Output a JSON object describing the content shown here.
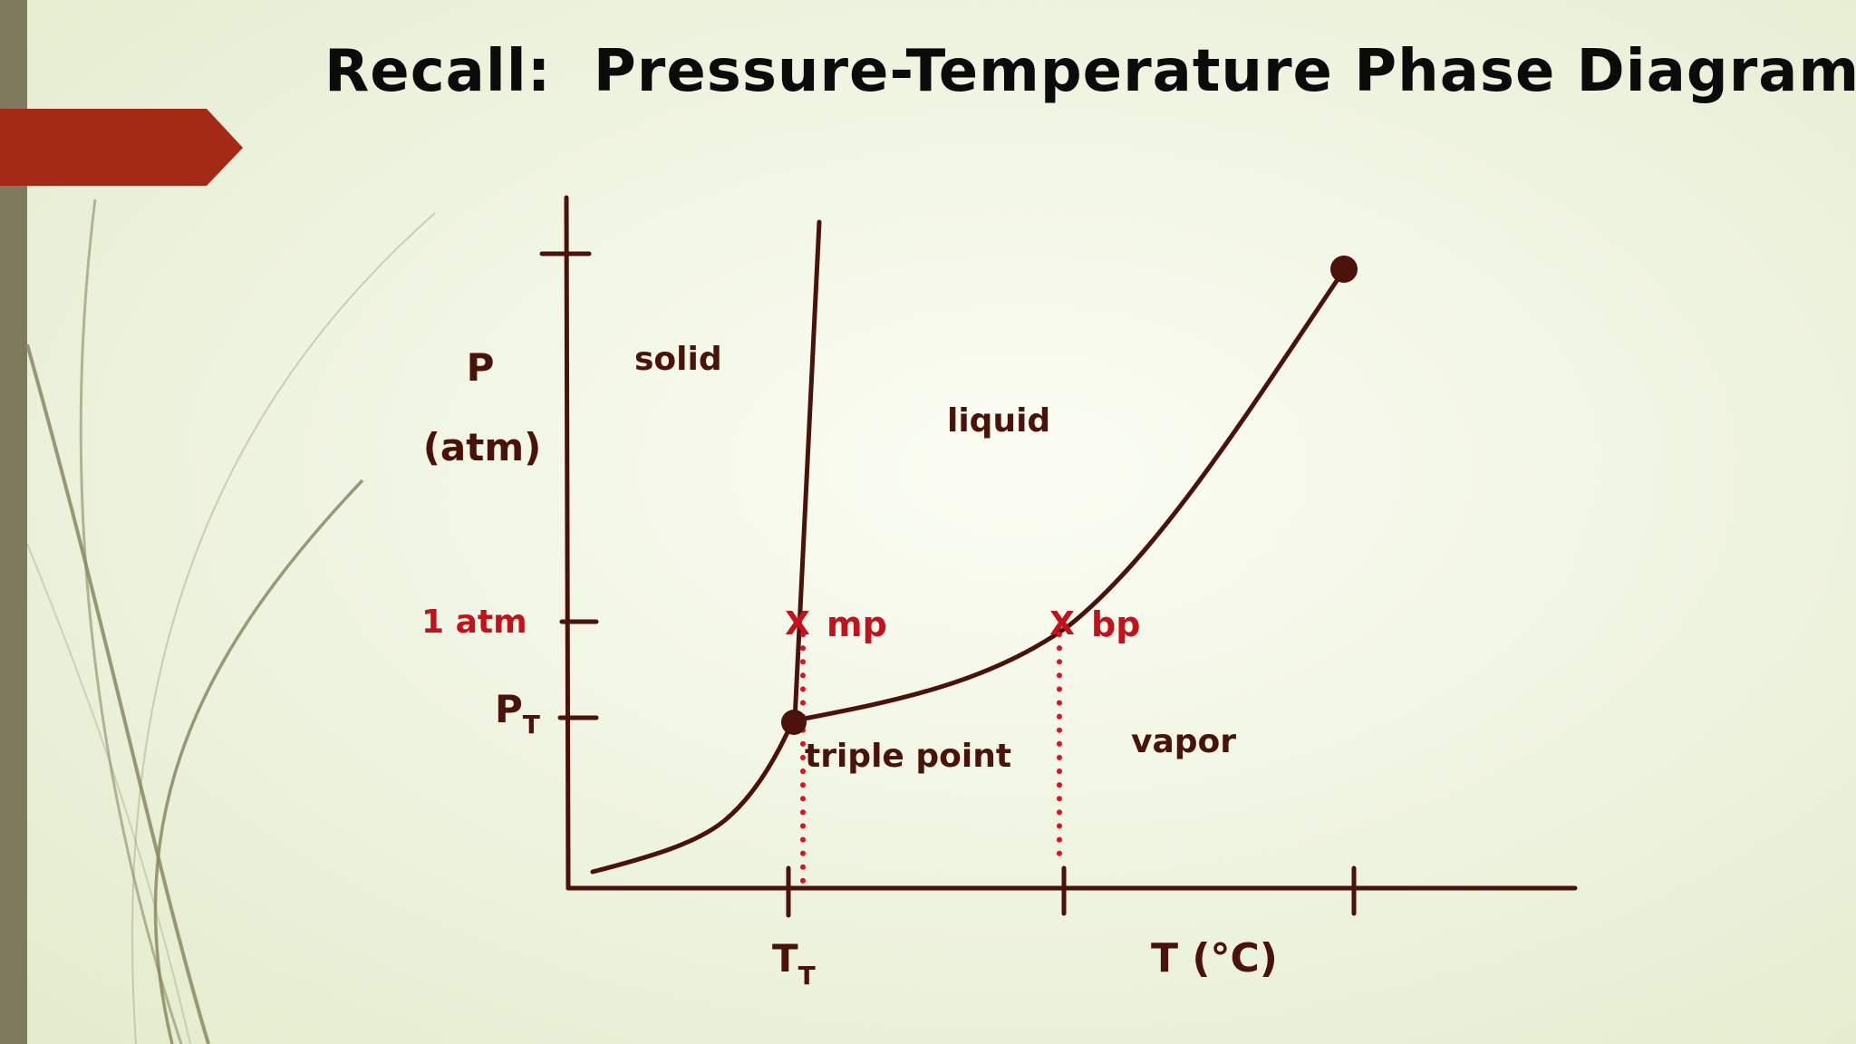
{
  "title": "Recall:  Pressure-Temperature Phase Diagrams",
  "axes": {
    "y_label_line1": "P",
    "y_label_line2": "(atm)",
    "x_label": "T (°C)",
    "y_tick_1atm": "1 atm",
    "y_tick_triple_main": "P",
    "y_tick_triple_sub": "T",
    "x_tick_triple_main": "T",
    "x_tick_triple_sub": "T"
  },
  "regions": {
    "solid": "solid",
    "liquid": "liquid",
    "vapor": "vapor"
  },
  "points": {
    "triple_point": "triple point",
    "mp": "mp",
    "bp": "bp",
    "marker": "X"
  },
  "colors": {
    "curve": "#4a1208",
    "highlight": "#c3121b",
    "accent_arrow": "#a52a16",
    "left_bar": "#7d7a5e"
  }
}
